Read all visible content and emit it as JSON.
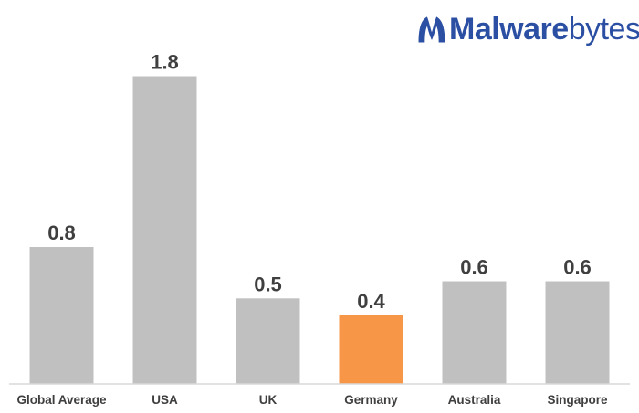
{
  "brand": {
    "name_bold": "Malware",
    "name_light": "bytes",
    "color": "#2b4fa3",
    "icon": "malwarebytes-logo-icon"
  },
  "chart_data": {
    "type": "bar",
    "categories": [
      "Global Average",
      "USA",
      "UK",
      "Germany",
      "Australia",
      "Singapore"
    ],
    "values": [
      0.8,
      1.8,
      0.5,
      0.4,
      0.6,
      0.6
    ],
    "value_labels": [
      "0.8",
      "1.8",
      "0.5",
      "0.4",
      "0.6",
      "0.6"
    ],
    "highlight_index": 3,
    "bar_color": "#c0c0c0",
    "highlight_color": "#f79646",
    "axis_color": "#d9d9d9",
    "text_color": "#3f3f3f",
    "ylim": [
      0,
      2.0
    ],
    "grid": false,
    "legend": "none",
    "title": "",
    "xlabel": "",
    "ylabel": ""
  }
}
